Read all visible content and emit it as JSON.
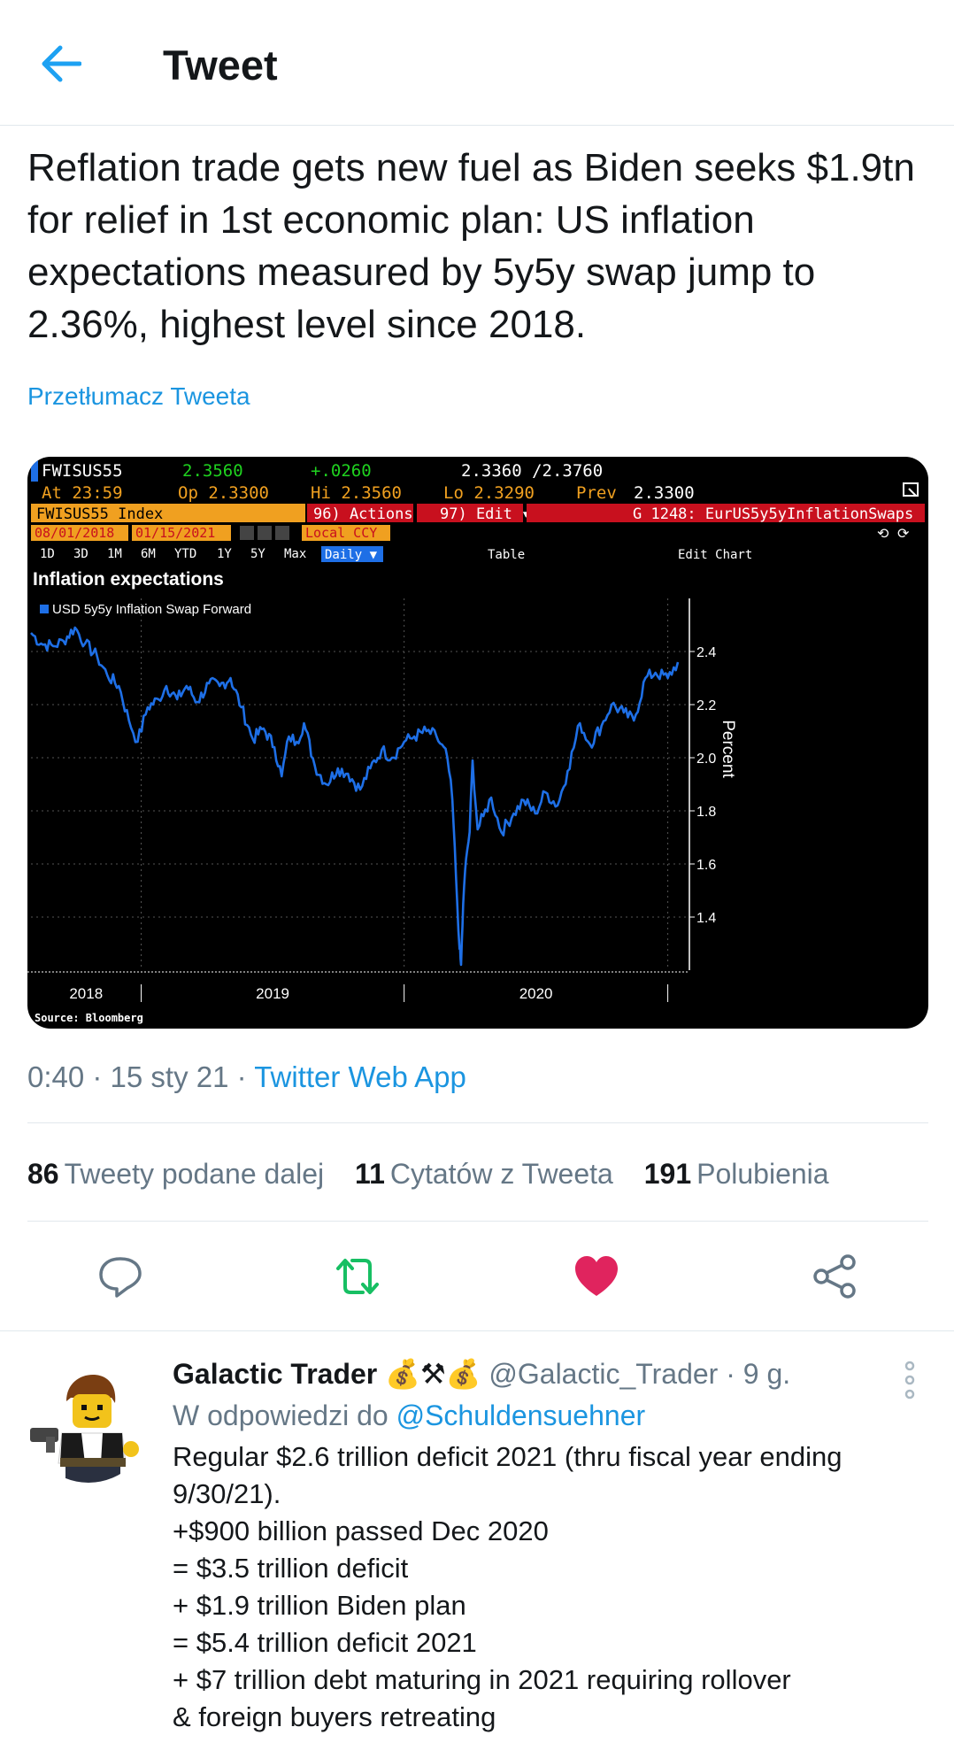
{
  "header": {
    "title": "Tweet"
  },
  "tweet": {
    "text": "Reflation trade gets new fuel as Biden seeks $1.9tn for relief in 1st economic plan: US inflation expectations measured by 5y5y swap jump to 2.36%, highest level since 2018.",
    "translate": "Przetłumacz Tweeta",
    "time": "0:40 · 15 sty 21 · ",
    "app": "Twitter Web App"
  },
  "chart": {
    "ticker": "FWISUS55",
    "last": "2.3560",
    "change": "+.0260",
    "bid_ask": "2.3360 /2.3760",
    "at": "At 23:59",
    "open": "Op 2.3300",
    "high": "Hi 2.3560",
    "low": "Lo 2.3290",
    "prev_label": "Prev",
    "prev": "2.3300",
    "index_label": "FWISUS55 Index",
    "actions": "96) Actions ▾",
    "edit": "97) Edit ▾",
    "page_id": "G 1248: EurUS5y5yInflationSwaps",
    "date_from": "08/01/2018",
    "date_to": "01/15/2021",
    "currency": "Local CCY",
    "periods": [
      "1D",
      "3D",
      "1M",
      "6M",
      "YTD",
      "1Y",
      "5Y",
      "Max"
    ],
    "frequency": "Daily ▼",
    "table": "Table",
    "edit_chart": "Edit Chart",
    "source": "Source: Bloomberg"
  },
  "chart_data": {
    "type": "line",
    "title": "Inflation expectations",
    "ylabel": "Percent",
    "ylim": [
      1.2,
      2.6
    ],
    "yticks": [
      "2.4",
      "2.2",
      "2.0",
      "1.8",
      "1.6",
      "1.4"
    ],
    "xticks": [
      "2018",
      "2019",
      "2020"
    ],
    "series": [
      {
        "name": "USD 5y5y Inflation Swap Forward",
        "color": "#1e6fe6",
        "points": [
          [
            "2018-08-01",
            2.47
          ],
          [
            "2018-08-15",
            2.43
          ],
          [
            "2018-09-01",
            2.42
          ],
          [
            "2018-09-15",
            2.44
          ],
          [
            "2018-10-01",
            2.49
          ],
          [
            "2018-10-15",
            2.43
          ],
          [
            "2018-11-01",
            2.38
          ],
          [
            "2018-11-15",
            2.31
          ],
          [
            "2018-12-01",
            2.27
          ],
          [
            "2018-12-15",
            2.14
          ],
          [
            "2018-12-27",
            2.06
          ],
          [
            "2019-01-10",
            2.19
          ],
          [
            "2019-01-25",
            2.22
          ],
          [
            "2019-02-05",
            2.27
          ],
          [
            "2019-02-20",
            2.22
          ],
          [
            "2019-03-05",
            2.27
          ],
          [
            "2019-03-20",
            2.21
          ],
          [
            "2019-04-05",
            2.28
          ],
          [
            "2019-04-20",
            2.27
          ],
          [
            "2019-05-05",
            2.3
          ],
          [
            "2019-05-20",
            2.19
          ],
          [
            "2019-06-05",
            2.07
          ],
          [
            "2019-06-20",
            2.11
          ],
          [
            "2019-07-05",
            2.04
          ],
          [
            "2019-07-15",
            1.93
          ],
          [
            "2019-07-25",
            2.08
          ],
          [
            "2019-08-05",
            2.06
          ],
          [
            "2019-08-15",
            2.13
          ],
          [
            "2019-08-30",
            1.97
          ],
          [
            "2019-09-15",
            1.9
          ],
          [
            "2019-10-01",
            1.96
          ],
          [
            "2019-10-15",
            1.94
          ],
          [
            "2019-11-01",
            1.88
          ],
          [
            "2019-11-15",
            1.96
          ],
          [
            "2019-12-01",
            2.03
          ],
          [
            "2019-12-15",
            2.0
          ],
          [
            "2020-01-01",
            2.06
          ],
          [
            "2020-01-15",
            2.08
          ],
          [
            "2020-02-01",
            2.1
          ],
          [
            "2020-02-15",
            2.08
          ],
          [
            "2020-03-01",
            2.0
          ],
          [
            "2020-03-08",
            1.84
          ],
          [
            "2020-03-13",
            1.55
          ],
          [
            "2020-03-18",
            1.28
          ],
          [
            "2020-03-20",
            1.22
          ],
          [
            "2020-03-23",
            1.45
          ],
          [
            "2020-03-27",
            1.62
          ],
          [
            "2020-04-01",
            1.72
          ],
          [
            "2020-04-05",
            1.99
          ],
          [
            "2020-04-12",
            1.73
          ],
          [
            "2020-04-20",
            1.78
          ],
          [
            "2020-05-01",
            1.85
          ],
          [
            "2020-05-15",
            1.72
          ],
          [
            "2020-06-01",
            1.79
          ],
          [
            "2020-06-15",
            1.84
          ],
          [
            "2020-07-01",
            1.79
          ],
          [
            "2020-07-15",
            1.87
          ],
          [
            "2020-08-01",
            1.82
          ],
          [
            "2020-08-15",
            1.95
          ],
          [
            "2020-09-01",
            2.13
          ],
          [
            "2020-09-15",
            2.05
          ],
          [
            "2020-10-01",
            2.12
          ],
          [
            "2020-10-15",
            2.2
          ],
          [
            "2020-11-01",
            2.17
          ],
          [
            "2020-11-15",
            2.14
          ],
          [
            "2020-12-01",
            2.3
          ],
          [
            "2020-12-15",
            2.32
          ],
          [
            "2021-01-01",
            2.3
          ],
          [
            "2021-01-15",
            2.36
          ]
        ]
      }
    ],
    "grid": true,
    "legend": "top-left"
  },
  "stats": {
    "retweets_count": "86",
    "retweets_label": "Tweety podane dalej",
    "quotes_count": "11",
    "quotes_label": "Cytatów z Tweeta",
    "likes_count": "191",
    "likes_label": "Polubienia"
  },
  "actions": {
    "reply_icon": "reply-bubble-icon",
    "retweet_icon": "retweet-icon",
    "like_icon": "heart-icon",
    "share_icon": "share-icon",
    "retweet_color": "#17bf63",
    "like_color": "#e0245e"
  },
  "reply": {
    "name": "Galactic Trader",
    "emoji": "💰⚒💰",
    "handle": "@Galactic_Trader",
    "age": " · 9 g.",
    "reply_to_label": "W odpowiedzi do ",
    "reply_to_handle": "@Schuldensuehner",
    "lines": [
      "Regular $2.6 trillion deficit 2021 (thru fiscal year ending",
      "9/30/21).",
      "+$900 billion passed Dec 2020",
      "= $3.5 trillion deficit",
      "+ $1.9 trillion Biden plan",
      "= $5.4 trillion deficit 2021",
      "+ $7 trillion debt maturing in 2021 requiring rollover",
      "& foreign buyers retreating"
    ]
  }
}
